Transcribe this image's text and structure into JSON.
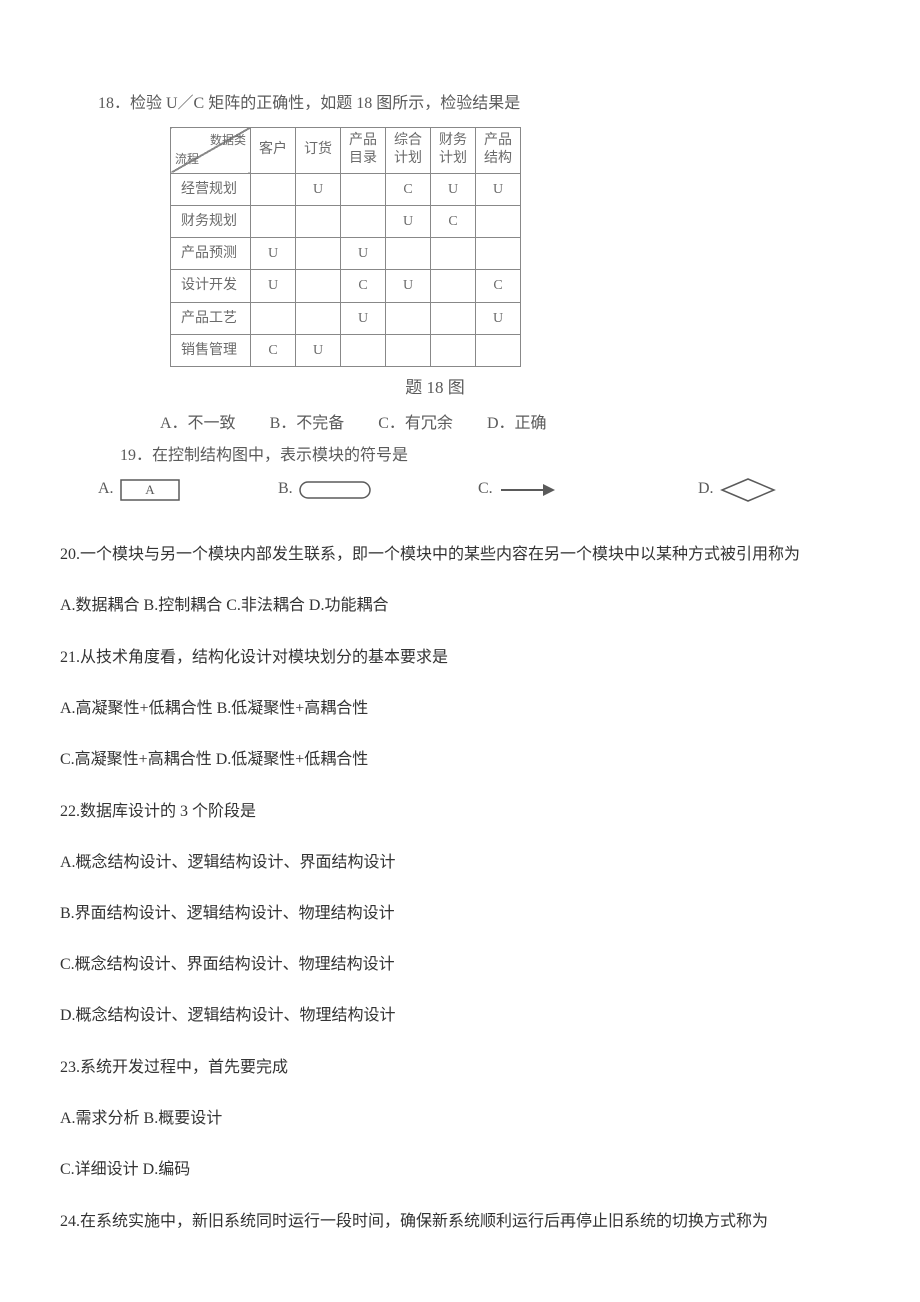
{
  "q18": {
    "prompt": "18．检验 U／C 矩阵的正确性，如题 18 图所示，检验结果是",
    "table": {
      "diag_top": "数据类",
      "diag_bottom": "流程",
      "columns": [
        "客户",
        "订货",
        "产品\n目录",
        "综合\n计划",
        "财务\n计划",
        "产品\n结构"
      ],
      "rows": [
        {
          "label": "经营规划",
          "cells": [
            "",
            "U",
            "",
            "C",
            "U",
            "U"
          ]
        },
        {
          "label": "财务规划",
          "cells": [
            "",
            "",
            "",
            "U",
            "C",
            ""
          ]
        },
        {
          "label": "产品预测",
          "cells": [
            "U",
            "",
            "U",
            "",
            "",
            ""
          ]
        },
        {
          "label": "设计开发",
          "cells": [
            "U",
            "",
            "C",
            "U",
            "",
            "C"
          ]
        },
        {
          "label": "产品工艺",
          "cells": [
            "",
            "",
            "U",
            "",
            "",
            "U"
          ]
        },
        {
          "label": "销售管理",
          "cells": [
            "C",
            "U",
            "",
            "",
            "",
            ""
          ]
        }
      ],
      "border_color": "#888888",
      "cell_text_color": "#6a6a6a"
    },
    "caption": "题 18 图",
    "options": {
      "A": "A．不一致",
      "B": "B．不完备",
      "C": "C．有冗余",
      "D": "D．正确"
    }
  },
  "q19": {
    "prompt": "19．在控制结构图中，表示模块的符号是",
    "options": {
      "A": "A.",
      "B": "B.",
      "C": "C.",
      "D": "D."
    },
    "shapes": {
      "rect_label": "A",
      "arrow_stroke": "#5a5a5a",
      "diamond_stroke": "#5a5a5a"
    }
  },
  "q20": {
    "prompt": "20.一个模块与另一个模块内部发生联系，即一个模块中的某些内容在另一个模块中以某种方式被引用称为",
    "options": "A.数据耦合 B.控制耦合 C.非法耦合 D.功能耦合"
  },
  "q21": {
    "prompt": "21.从技术角度看，结构化设计对模块划分的基本要求是",
    "line1": "A.高凝聚性+低耦合性 B.低凝聚性+高耦合性",
    "line2": "C.高凝聚性+高耦合性 D.低凝聚性+低耦合性"
  },
  "q22": {
    "prompt": "22.数据库设计的 3 个阶段是",
    "a": "A.概念结构设计、逻辑结构设计、界面结构设计",
    "b": "B.界面结构设计、逻辑结构设计、物理结构设计",
    "c": "C.概念结构设计、界面结构设计、物理结构设计",
    "d": "D.概念结构设计、逻辑结构设计、物理结构设计"
  },
  "q23": {
    "prompt": "23.系统开发过程中，首先要完成",
    "line1": "A.需求分析 B.概要设计",
    "line2": "C.详细设计 D.编码"
  },
  "q24": {
    "prompt": "24.在系统实施中，新旧系统同时运行一段时间，确保新系统顺利运行后再停止旧系统的切换方式称为"
  }
}
